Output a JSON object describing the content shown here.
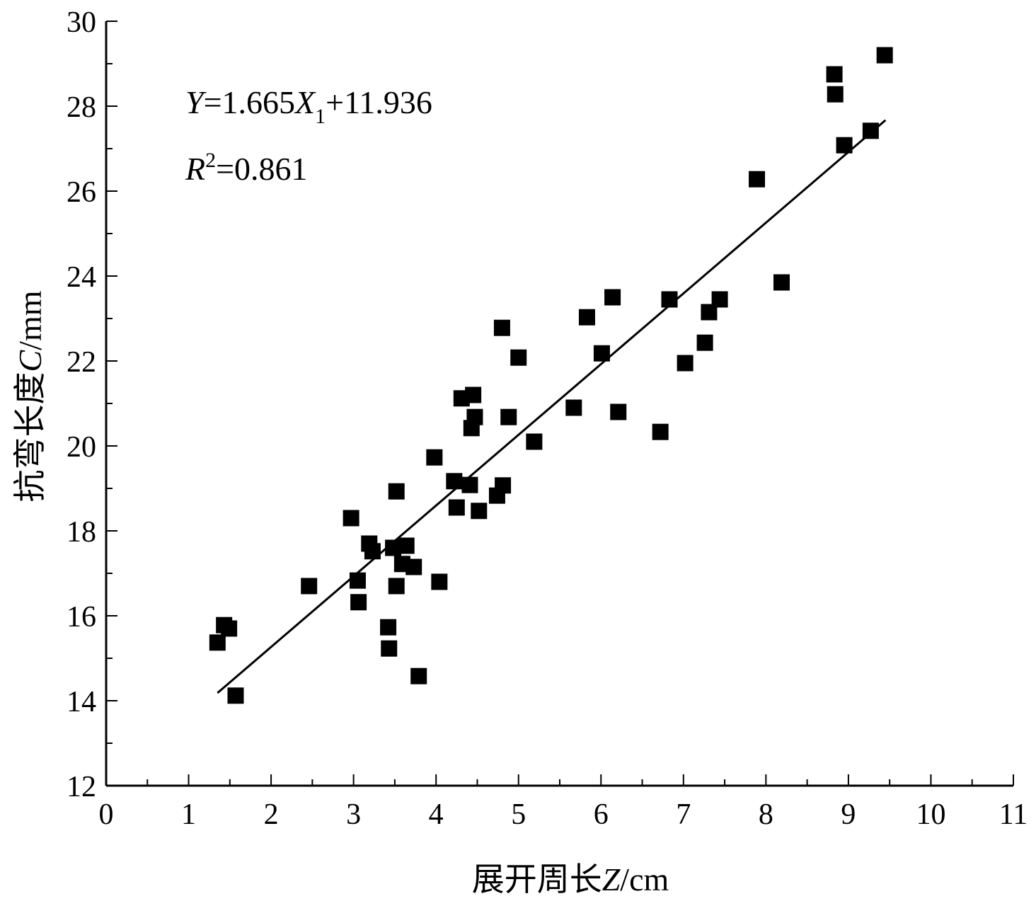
{
  "chart_data": {
    "type": "scatter",
    "title": "",
    "xlabel": "展开周长Z/cm",
    "xlabel_parts": {
      "prefix": "展开周长",
      "var": "Z",
      "unit": "/cm"
    },
    "ylabel": "抗弯长度C/mm",
    "ylabel_parts": {
      "prefix": "抗弯长度",
      "var": "C",
      "unit": "/mm"
    },
    "xlim": [
      0,
      11
    ],
    "ylim": [
      12,
      30
    ],
    "x_ticks": [
      "0",
      "1",
      "2",
      "3",
      "4",
      "5",
      "6",
      "7",
      "8",
      "9",
      "10",
      "11"
    ],
    "y_ticks": [
      "12",
      "14",
      "16",
      "18",
      "20",
      "22",
      "24",
      "26",
      "28",
      "30"
    ],
    "grid": false,
    "marker": "square",
    "color": "#000000",
    "points": [
      [
        1.35,
        15.37
      ],
      [
        1.43,
        15.78
      ],
      [
        1.49,
        15.7
      ],
      [
        1.57,
        14.12
      ],
      [
        2.46,
        16.7
      ],
      [
        2.97,
        18.3
      ],
      [
        3.05,
        16.83
      ],
      [
        3.06,
        16.32
      ],
      [
        3.19,
        17.7
      ],
      [
        3.23,
        17.52
      ],
      [
        3.42,
        15.73
      ],
      [
        3.43,
        15.23
      ],
      [
        3.48,
        17.6
      ],
      [
        3.52,
        18.93
      ],
      [
        3.52,
        16.7
      ],
      [
        3.59,
        17.22
      ],
      [
        3.64,
        17.65
      ],
      [
        3.73,
        17.15
      ],
      [
        3.79,
        14.58
      ],
      [
        3.98,
        19.73
      ],
      [
        4.04,
        16.8
      ],
      [
        4.22,
        19.17
      ],
      [
        4.25,
        18.55
      ],
      [
        4.31,
        21.12
      ],
      [
        4.41,
        19.08
      ],
      [
        4.43,
        20.42
      ],
      [
        4.45,
        21.2
      ],
      [
        4.47,
        20.68
      ],
      [
        4.52,
        18.47
      ],
      [
        4.74,
        18.83
      ],
      [
        4.8,
        22.78
      ],
      [
        4.81,
        19.07
      ],
      [
        4.88,
        20.68
      ],
      [
        5.0,
        22.08
      ],
      [
        5.19,
        20.1
      ],
      [
        5.67,
        20.9
      ],
      [
        5.83,
        23.03
      ],
      [
        6.01,
        22.18
      ],
      [
        6.14,
        23.5
      ],
      [
        6.21,
        20.8
      ],
      [
        6.72,
        20.33
      ],
      [
        6.83,
        23.45
      ],
      [
        7.02,
        21.95
      ],
      [
        7.26,
        22.43
      ],
      [
        7.31,
        23.15
      ],
      [
        7.44,
        23.45
      ],
      [
        7.89,
        26.28
      ],
      [
        8.19,
        23.85
      ],
      [
        8.83,
        28.75
      ],
      [
        8.84,
        28.28
      ],
      [
        8.95,
        27.08
      ],
      [
        9.27,
        27.42
      ],
      [
        9.44,
        29.2
      ]
    ],
    "fit_line": {
      "slope": 1.665,
      "intercept": 11.936,
      "x_range": [
        1.35,
        9.45
      ]
    },
    "annotations": {
      "equation": {
        "y": "Y",
        "eq": "=1.665",
        "x": "X",
        "sub": "1",
        "rest": "+11.936"
      },
      "r2": {
        "r": "R",
        "sup": "2",
        "rest": "=0.861"
      }
    }
  }
}
